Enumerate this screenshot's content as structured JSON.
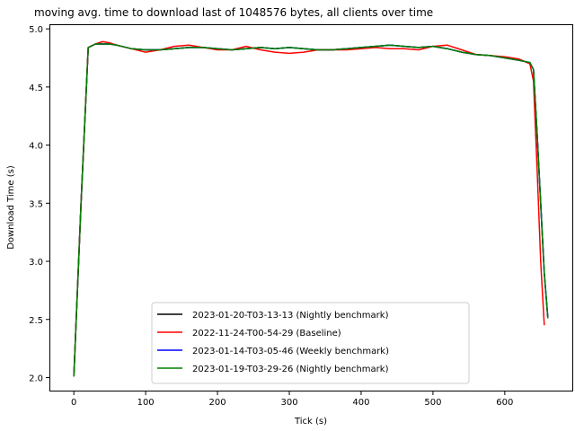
{
  "chart_data": {
    "type": "line",
    "title": "moving avg. time to download last of 1048576 bytes, all clients over time",
    "xlabel": "Tick (s)",
    "ylabel": "Download Time (s)",
    "xlim": [
      -34,
      694
    ],
    "ylim": [
      1.88,
      5.04
    ],
    "xticks": [
      0,
      100,
      200,
      300,
      400,
      500,
      600
    ],
    "xtick_labels": [
      "0",
      "100",
      "200",
      "300",
      "400",
      "500",
      "600"
    ],
    "yticks": [
      2.0,
      2.5,
      3.0,
      3.5,
      4.0,
      4.5,
      5.0
    ],
    "ytick_labels": [
      "2.0",
      "2.5",
      "3.0",
      "3.5",
      "4.0",
      "4.5",
      "5.0"
    ],
    "grid": false,
    "legend_position": "lower-center",
    "series": [
      {
        "name": "2023-01-20-T03-13-13 (Nightly benchmark)",
        "color": "#000000",
        "x": [
          0,
          10,
          20,
          30,
          40,
          50,
          60,
          80,
          100,
          120,
          140,
          160,
          180,
          200,
          220,
          240,
          260,
          280,
          300,
          320,
          340,
          360,
          380,
          400,
          420,
          440,
          460,
          480,
          500,
          520,
          540,
          560,
          580,
          600,
          620,
          635,
          640,
          645,
          650,
          655,
          660
        ],
        "y": [
          2.01,
          3.5,
          4.84,
          4.87,
          4.87,
          4.87,
          4.86,
          4.83,
          4.82,
          4.82,
          4.83,
          4.84,
          4.84,
          4.83,
          4.82,
          4.83,
          4.84,
          4.83,
          4.84,
          4.83,
          4.82,
          4.82,
          4.83,
          4.84,
          4.85,
          4.86,
          4.85,
          4.84,
          4.85,
          4.83,
          4.8,
          4.78,
          4.77,
          4.75,
          4.73,
          4.71,
          4.65,
          4.1,
          3.5,
          2.9,
          2.51
        ]
      },
      {
        "name": "2022-11-24-T00-54-29 (Baseline)",
        "color": "#ff0000",
        "x": [
          0,
          10,
          20,
          30,
          40,
          50,
          60,
          80,
          100,
          120,
          140,
          160,
          180,
          200,
          220,
          240,
          260,
          280,
          300,
          320,
          340,
          360,
          380,
          400,
          420,
          440,
          460,
          480,
          500,
          520,
          540,
          560,
          580,
          600,
          620,
          635,
          640,
          645,
          650,
          655
        ],
        "y": [
          2.01,
          3.5,
          4.84,
          4.87,
          4.89,
          4.88,
          4.86,
          4.83,
          4.8,
          4.82,
          4.85,
          4.86,
          4.84,
          4.82,
          4.82,
          4.85,
          4.82,
          4.8,
          4.79,
          4.8,
          4.82,
          4.82,
          4.82,
          4.83,
          4.84,
          4.83,
          4.83,
          4.82,
          4.85,
          4.86,
          4.82,
          4.78,
          4.77,
          4.76,
          4.74,
          4.7,
          4.55,
          3.8,
          3.0,
          2.45
        ]
      },
      {
        "name": "2023-01-14-T03-05-46 (Weekly benchmark)",
        "color": "#0000ff",
        "x": [
          0,
          10,
          20,
          30,
          40,
          50,
          60,
          80,
          100,
          120,
          140,
          160,
          180,
          200,
          220,
          240,
          260,
          280,
          300,
          320,
          340,
          360,
          380,
          400,
          420,
          440,
          460,
          480,
          500,
          520,
          540,
          560,
          580,
          600,
          620,
          635,
          640,
          645,
          650,
          655,
          660
        ],
        "y": [
          2.01,
          3.5,
          4.84,
          4.87,
          4.87,
          4.87,
          4.86,
          4.83,
          4.82,
          4.82,
          4.83,
          4.84,
          4.84,
          4.83,
          4.82,
          4.83,
          4.84,
          4.83,
          4.84,
          4.83,
          4.82,
          4.82,
          4.83,
          4.84,
          4.85,
          4.86,
          4.85,
          4.84,
          4.85,
          4.83,
          4.8,
          4.78,
          4.77,
          4.75,
          4.73,
          4.71,
          4.65,
          4.1,
          3.5,
          2.9,
          2.51
        ]
      },
      {
        "name": "2023-01-19-T03-29-26 (Nightly benchmark)",
        "color": "#008000",
        "x": [
          0,
          10,
          20,
          30,
          40,
          50,
          60,
          80,
          100,
          120,
          140,
          160,
          180,
          200,
          220,
          240,
          260,
          280,
          300,
          320,
          340,
          360,
          380,
          400,
          420,
          440,
          460,
          480,
          500,
          520,
          540,
          560,
          580,
          600,
          620,
          635,
          640,
          645,
          650,
          655,
          660
        ],
        "y": [
          2.01,
          3.5,
          4.84,
          4.87,
          4.87,
          4.87,
          4.86,
          4.83,
          4.82,
          4.82,
          4.83,
          4.84,
          4.84,
          4.83,
          4.82,
          4.83,
          4.84,
          4.83,
          4.84,
          4.83,
          4.82,
          4.82,
          4.83,
          4.84,
          4.85,
          4.86,
          4.85,
          4.84,
          4.85,
          4.83,
          4.8,
          4.78,
          4.77,
          4.75,
          4.73,
          4.71,
          4.65,
          4.1,
          3.5,
          2.9,
          2.51
        ]
      }
    ]
  }
}
